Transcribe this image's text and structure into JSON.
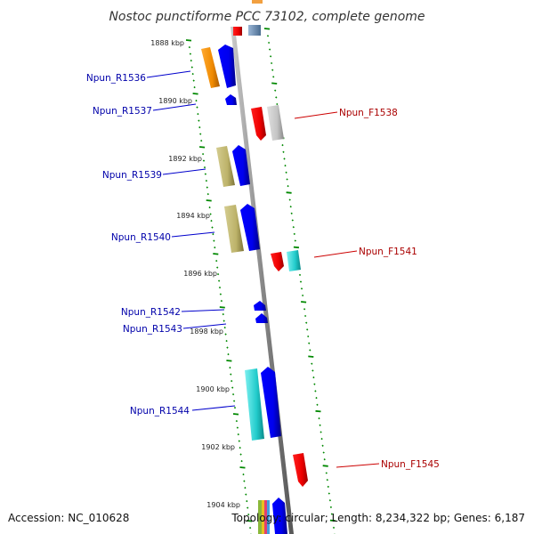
{
  "title": "Nostoc punctiforme PCC 73102, complete genome",
  "accession": "Accession: NC_010628",
  "topology": "Topology: circular; Length: 8,234,322 bp; Genes: 6,187",
  "colors": {
    "reverse_label": "#0000aa",
    "forward_label": "#aa0000",
    "blue_gene": "#0000ee",
    "red_gene": "#ee0000",
    "ruler": "#008800"
  },
  "kbp_ticks": [
    "1888 kbp",
    "1890 kbp",
    "1892 kbp",
    "1894 kbp",
    "1896 kbp",
    "1898 kbp",
    "1900 kbp",
    "1902 kbp",
    "1904 kbp"
  ],
  "reverse_labels": [
    "Npun_R1536",
    "Npun_R1537",
    "Npun_R1539",
    "Npun_R1540",
    "Npun_R1542",
    "Npun_R1543",
    "Npun_R1544"
  ],
  "forward_labels": [
    "Npun_F1538",
    "Npun_F1541",
    "Npun_F1545"
  ]
}
